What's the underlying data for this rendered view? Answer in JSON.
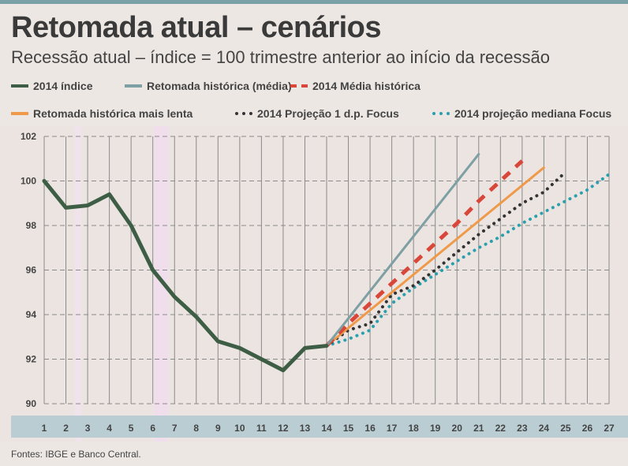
{
  "chart_data": {
    "type": "line",
    "title": "Retomada atual – cenários",
    "subtitle": "Recessão atual – índice = 100 trimestre anterior ao início da recessão",
    "xlabel": "",
    "ylabel": "",
    "x_ticks": [
      "1",
      "2",
      "3",
      "4",
      "5",
      "6",
      "7",
      "8",
      "9",
      "10",
      "11",
      "12",
      "13",
      "14",
      "15",
      "16",
      "17",
      "18",
      "19",
      "20",
      "21",
      "22",
      "23",
      "24",
      "25",
      "26",
      "27"
    ],
    "y_ticks": [
      "90",
      "92",
      "94",
      "96",
      "98",
      "100",
      "102"
    ],
    "xlim": [
      1,
      27
    ],
    "ylim": [
      90,
      102
    ],
    "grid": true,
    "legend_position": "top",
    "series": [
      {
        "name": "2014 índice",
        "color": "#3d5e45",
        "style": "solid",
        "x": [
          1,
          2,
          3,
          4,
          5,
          6,
          7,
          8,
          9,
          10,
          11,
          12,
          13,
          14
        ],
        "values": [
          100,
          98.8,
          98.9,
          99.4,
          98.0,
          96.0,
          94.8,
          93.9,
          92.8,
          92.5,
          92.0,
          91.5,
          92.5,
          92.6
        ]
      },
      {
        "name": "Retomada histórica (média)",
        "color": "#7e9fa3",
        "style": "solid",
        "x": [
          14,
          21
        ],
        "values": [
          92.6,
          101.2
        ]
      },
      {
        "name": "2014 Média histórica",
        "color": "#d9473a",
        "style": "dashed",
        "x": [
          14,
          15,
          16,
          17,
          18,
          19,
          20,
          21,
          22,
          23
        ],
        "values": [
          92.6,
          93.6,
          94.5,
          95.4,
          96.3,
          97.2,
          98.1,
          99.1,
          100.0,
          100.9
        ]
      },
      {
        "name": "Retomada histórica mais lenta",
        "color": "#ef9a4a",
        "style": "solid",
        "x": [
          14,
          24
        ],
        "values": [
          92.6,
          100.6
        ]
      },
      {
        "name": "2014 Projeção 1 d.p. Focus",
        "color": "#333333",
        "style": "dotted",
        "x": [
          14,
          15,
          16,
          17,
          18,
          19,
          20,
          21,
          22,
          23,
          24,
          25
        ],
        "values": [
          92.6,
          93.3,
          93.6,
          94.9,
          95.3,
          96.0,
          96.8,
          97.6,
          98.3,
          99.0,
          99.5,
          100.4
        ]
      },
      {
        "name": "2014 projeção mediana Focus",
        "color": "#2a9fae",
        "style": "dotted",
        "x": [
          14,
          15,
          16,
          17,
          18,
          19,
          20,
          21,
          22,
          23,
          24,
          25,
          26,
          27
        ],
        "values": [
          92.6,
          92.9,
          93.3,
          94.5,
          95.2,
          95.8,
          96.4,
          97.0,
          97.5,
          98.1,
          98.6,
          99.1,
          99.6,
          100.3
        ]
      }
    ]
  },
  "source": "Fontes: IBGE e Banco Central."
}
